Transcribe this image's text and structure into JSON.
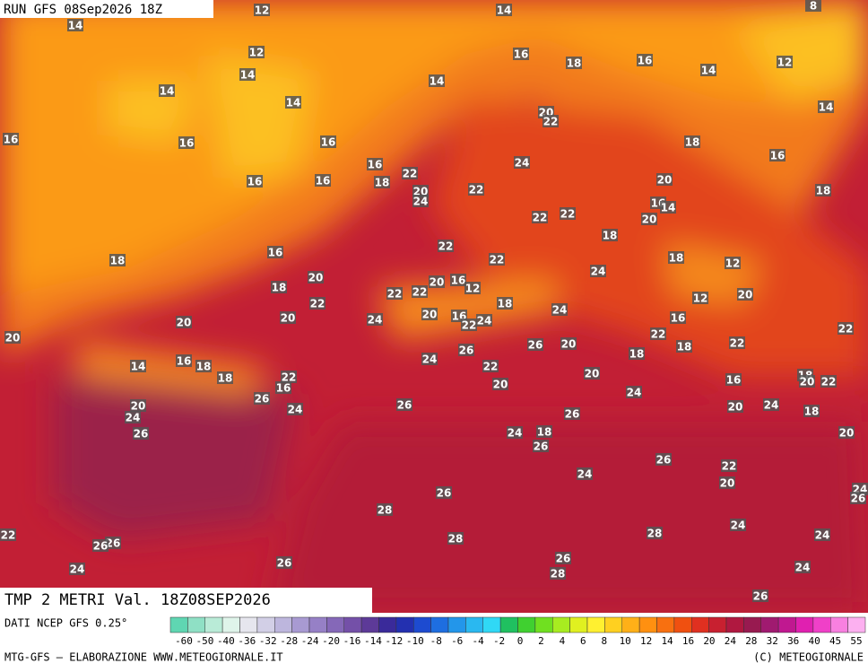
{
  "header": {
    "run": "RUN GFS 08Sep2026 18Z",
    "field": "TMP 2 METRI Val. 18Z08SEP2026"
  },
  "footer": {
    "source": "DATI NCEP GFS 0.25°",
    "credit": "MTG-GFS — ELABORAZIONE WWW.METEOGIORNALE.IT",
    "copyright": "(C) METEOGIORNALE"
  },
  "legend": {
    "ticks": [
      -60,
      -50,
      -40,
      -36,
      -32,
      -28,
      -24,
      -20,
      -16,
      -14,
      -12,
      -10,
      -8,
      -6,
      -4,
      -2,
      0,
      2,
      4,
      6,
      8,
      10,
      12,
      14,
      16,
      20,
      24,
      28,
      32,
      36,
      40,
      45,
      55
    ]
  },
  "map": {
    "labels": [
      12,
      14,
      8,
      14,
      12,
      16,
      18,
      16,
      14,
      12,
      14,
      14,
      14,
      14,
      14,
      20,
      22,
      16,
      16,
      16,
      18,
      16,
      16,
      24,
      22,
      16,
      16,
      18,
      20,
      20,
      24,
      22,
      18,
      16,
      14,
      22,
      22,
      20,
      18,
      22,
      16,
      18,
      22,
      18,
      12,
      24,
      20,
      18,
      20,
      16,
      12,
      22,
      22,
      22,
      12,
      20,
      18,
      24,
      20,
      20,
      16,
      20,
      24,
      24,
      22,
      16,
      22,
      20,
      22,
      22,
      26,
      20,
      18,
      26,
      14,
      16,
      18,
      24,
      18,
      22,
      18,
      22,
      20,
      16,
      18,
      20,
      22,
      16,
      20,
      24,
      26,
      20,
      26,
      24,
      20,
      24,
      24,
      18,
      26,
      26,
      24,
      18,
      20,
      26,
      26,
      24,
      22,
      20,
      24,
      26,
      26,
      28,
      22,
      26,
      26,
      24,
      28,
      28,
      24,
      26,
      26,
      24,
      28,
      24,
      26
    ]
  }
}
